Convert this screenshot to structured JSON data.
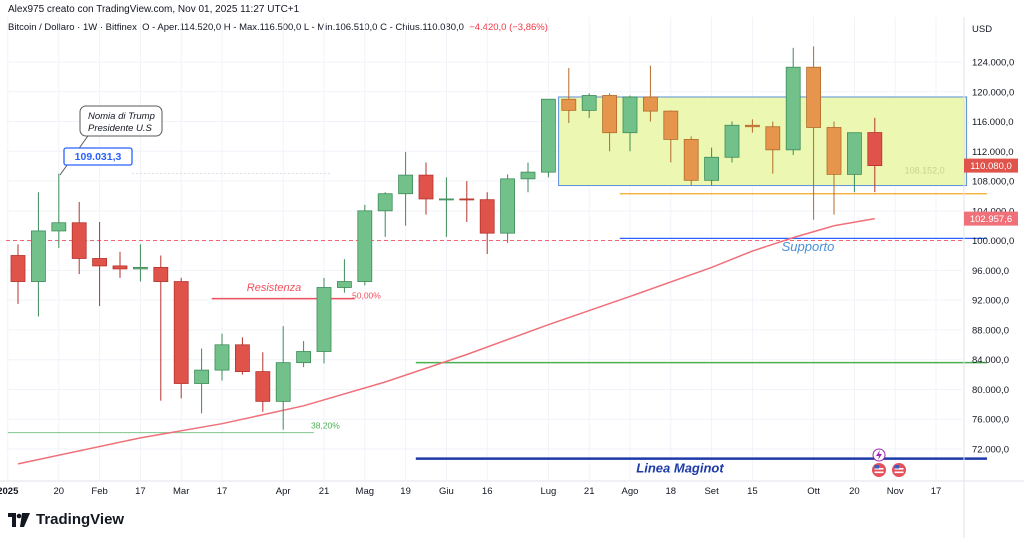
{
  "header": {
    "credit": "Alex975 creato con TradingView.com, Nov 01, 2025 11:27 UTC+1",
    "symbol": "Bitcoin / Dollaro · 1W · Bitfinex",
    "ohlc": "O - Aper.114.520,0  H - Max.116.500,0  L - Min.106.510,0  C - Chius.110.080,0",
    "change": "−4.420,0 (−3,86%)"
  },
  "footer": {
    "brand": "TradingView",
    "logo_icon": "tradingview-logo-icon"
  },
  "colors": {
    "up": "#73c18a",
    "up_border": "#3d8b59",
    "down": "#e0534a",
    "down_border": "#b5332b",
    "orange_up": "#e6954d",
    "orange_down": "#e6954d",
    "ma": "#f0707a",
    "box": "#e9f7a3",
    "box_border": "#5b8fd6",
    "support": "#2962ff",
    "maginot": "#1e3aa8"
  },
  "chart_data": {
    "type": "candlestick",
    "currency": "USD",
    "ylim": [
      68000,
      128000
    ],
    "y_ticks": [
      "124.000,0",
      "120.000,0",
      "116.000,0",
      "112.000,0",
      "108.000,0",
      "104.000,0",
      "100.000,0",
      "96.000,0",
      "92.000,0",
      "88.000,0",
      "84.000,0",
      "80.000,0",
      "76.000,0",
      "72.000,0"
    ],
    "x_ticks": [
      "2025",
      "20",
      "Feb",
      "17",
      "Mar",
      "17",
      "Apr",
      "21",
      "Mag",
      "19",
      "Giu",
      "16",
      "Lug",
      "21",
      "Ago",
      "18",
      "Set",
      "15",
      "Ott",
      "20",
      "Nov",
      "17"
    ],
    "price_labels": [
      {
        "text": "110.080,0",
        "value": 110080,
        "color": "#e0534a"
      },
      {
        "text": "102.957,6",
        "value": 102957.6,
        "color": "#f0707a"
      }
    ],
    "annotations": {
      "callout_lines": [
        "Nomia di Trump",
        "Presidente U.S"
      ],
      "callout_price": "109.031,3",
      "resistance": "Resistenza",
      "fib_50": "50,00%",
      "fib_38": "38,20%",
      "support": "Supporto",
      "maginot": "Linea Maginot",
      "box_price": "108.152,0"
    },
    "candles": [
      {
        "o": 98000,
        "h": 99500,
        "l": 91500,
        "c": 94500
      },
      {
        "o": 94500,
        "h": 106500,
        "l": 89800,
        "c": 101300
      },
      {
        "o": 101300,
        "h": 109000,
        "l": 99000,
        "c": 102400
      },
      {
        "o": 102400,
        "h": 105200,
        "l": 95500,
        "c": 97600
      },
      {
        "o": 97600,
        "h": 102500,
        "l": 91200,
        "c": 96600
      },
      {
        "o": 96600,
        "h": 98500,
        "l": 95000,
        "c": 96200
      },
      {
        "o": 96200,
        "h": 99500,
        "l": 94500,
        "c": 96400
      },
      {
        "o": 96400,
        "h": 98000,
        "l": 78500,
        "c": 94500
      },
      {
        "o": 94500,
        "h": 95000,
        "l": 78800,
        "c": 80800
      },
      {
        "o": 80800,
        "h": 85500,
        "l": 76800,
        "c": 82600
      },
      {
        "o": 82600,
        "h": 87500,
        "l": 81200,
        "c": 86000
      },
      {
        "o": 86000,
        "h": 87000,
        "l": 82000,
        "c": 82400
      },
      {
        "o": 82400,
        "h": 85000,
        "l": 77000,
        "c": 78400
      },
      {
        "o": 78400,
        "h": 88500,
        "l": 74600,
        "c": 83600
      },
      {
        "o": 83600,
        "h": 86500,
        "l": 83000,
        "c": 85100
      },
      {
        "o": 85100,
        "h": 95000,
        "l": 83500,
        "c": 93700
      },
      {
        "o": 93700,
        "h": 97500,
        "l": 93000,
        "c": 94500
      },
      {
        "o": 94500,
        "h": 104800,
        "l": 94000,
        "c": 104000
      },
      {
        "o": 104000,
        "h": 106500,
        "l": 100500,
        "c": 106300
      },
      {
        "o": 106300,
        "h": 111900,
        "l": 102000,
        "c": 108800
      },
      {
        "o": 108800,
        "h": 110500,
        "l": 103500,
        "c": 105600
      },
      {
        "o": 105600,
        "h": 108500,
        "l": 100500,
        "c": 105600
      },
      {
        "o": 105600,
        "h": 108000,
        "l": 102500,
        "c": 105500
      },
      {
        "o": 105500,
        "h": 106500,
        "l": 98200,
        "c": 101000
      },
      {
        "o": 101000,
        "h": 108900,
        "l": 99700,
        "c": 108300
      },
      {
        "o": 108300,
        "h": 110500,
        "l": 106500,
        "c": 109200
      },
      {
        "o": 109200,
        "h": 119000,
        "l": 108500,
        "c": 119000
      },
      {
        "o": 119000,
        "h": 123200,
        "l": 115800,
        "c": 117500
      },
      {
        "o": 117500,
        "h": 119800,
        "l": 116500,
        "c": 119500
      },
      {
        "o": 119500,
        "h": 119800,
        "l": 112000,
        "c": 114500
      },
      {
        "o": 114500,
        "h": 119500,
        "l": 112000,
        "c": 119300
      },
      {
        "o": 119300,
        "h": 123500,
        "l": 116000,
        "c": 117400
      },
      {
        "o": 117400,
        "h": 117500,
        "l": 110500,
        "c": 113600
      },
      {
        "o": 113600,
        "h": 114000,
        "l": 107400,
        "c": 108100
      },
      {
        "o": 108100,
        "h": 112500,
        "l": 107400,
        "c": 111200
      },
      {
        "o": 111200,
        "h": 116000,
        "l": 110500,
        "c": 115500
      },
      {
        "o": 115500,
        "h": 116300,
        "l": 114500,
        "c": 115300
      },
      {
        "o": 115300,
        "h": 116000,
        "l": 109000,
        "c": 112200
      },
      {
        "o": 112200,
        "h": 125900,
        "l": 111500,
        "c": 123300
      },
      {
        "o": 123300,
        "h": 126100,
        "l": 102800,
        "c": 115200
      },
      {
        "o": 115200,
        "h": 116000,
        "l": 103500,
        "c": 108900
      },
      {
        "o": 108900,
        "h": 114500,
        "l": 106500,
        "c": 114500
      },
      {
        "o": 114520,
        "h": 116500,
        "l": 106510,
        "c": 110080
      }
    ],
    "ma": [
      [
        0,
        70000
      ],
      [
        6,
        73500
      ],
      [
        10,
        75400
      ],
      [
        14,
        77800
      ],
      [
        18,
        81000
      ],
      [
        22,
        84700
      ],
      [
        26,
        88700
      ],
      [
        30,
        92500
      ],
      [
        34,
        96400
      ],
      [
        36,
        98600
      ],
      [
        38,
        100400
      ],
      [
        40,
        102000
      ],
      [
        42,
        102957.6
      ]
    ],
    "levels": {
      "resistance_y": 92200,
      "resistance_i": [
        9.5,
        16.5
      ],
      "fib38_y": 74200,
      "fib38_i": [
        -0.5,
        14.5
      ],
      "green_y": 83600,
      "green_i": [
        19.5,
        47.5
      ],
      "orange_y": 106300,
      "orange_i": [
        29.5,
        47.5
      ],
      "support_y": 100300,
      "support_i": [
        29.5,
        47.5
      ],
      "maginot_y": 70700,
      "maginot_i": [
        19.5,
        47.5
      ],
      "dashed_red_y": 100000,
      "box_top": 119300,
      "box_bottom": 107400,
      "box_i": [
        26.5,
        46.5
      ]
    }
  }
}
